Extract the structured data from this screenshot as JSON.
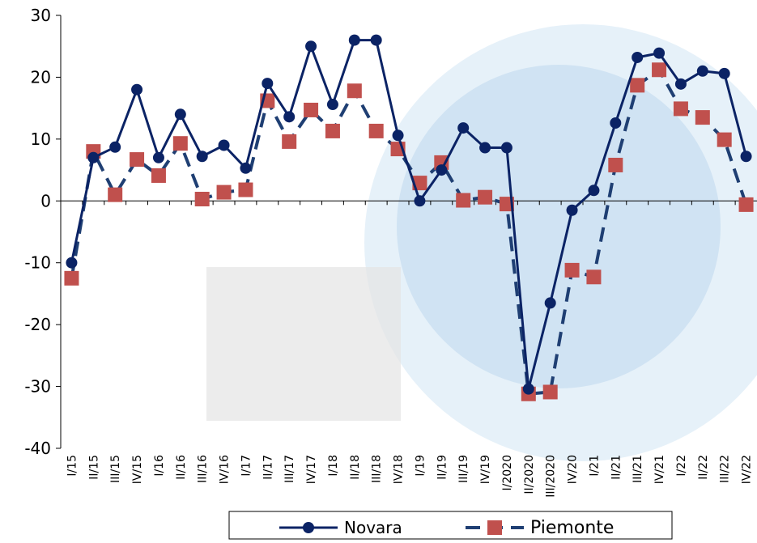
{
  "chart_data": {
    "type": "line",
    "categories": [
      "I/15",
      "II/15",
      "III/15",
      "IV/15",
      "I/16",
      "II/16",
      "III/16",
      "IV/16",
      "I/17",
      "II/17",
      "III/17",
      "IV/17",
      "I/18",
      "II/18",
      "III/18",
      "IV/18",
      "I/19",
      "II/19",
      "III/19",
      "IV/19",
      "I/2020",
      "II/2020",
      "III/2020",
      "IV/20",
      "I/21",
      "II/21",
      "III/21",
      "IV/21",
      "I/22",
      "II/22",
      "III/22",
      "IV/22"
    ],
    "series": [
      {
        "name": "Novara",
        "color": "#0b2365",
        "marker": "circle",
        "dashed": false,
        "values": [
          -10,
          7,
          8.7,
          18,
          7,
          14,
          7.2,
          9,
          5.3,
          19,
          13.6,
          25,
          15.6,
          26,
          26,
          10.6,
          0,
          5,
          11.8,
          8.6,
          8.6,
          -30.4,
          -16.5,
          -1.5,
          1.7,
          12.6,
          23.2,
          23.9,
          18.9,
          21,
          20.6,
          7.2
        ]
      },
      {
        "name": "Piemonte",
        "color": "#1f3f73",
        "marker_color": "#c0504d",
        "marker": "square",
        "dashed": true,
        "values": [
          -12.5,
          8,
          1,
          6.7,
          4.1,
          9.3,
          0.3,
          1.4,
          1.8,
          16.2,
          9.6,
          14.7,
          11.3,
          17.8,
          11.3,
          8.4,
          2.9,
          6.2,
          0.1,
          0.6,
          -0.5,
          -31.2,
          -30.9,
          -11.2,
          -12.3,
          5.8,
          18.7,
          21.2,
          14.9,
          13.5,
          9.9,
          -0.6
        ]
      }
    ],
    "ylim": [
      -40,
      30
    ],
    "yticks": [
      -40,
      -30,
      -20,
      -10,
      0,
      10,
      20,
      30
    ],
    "legend": "bottom"
  }
}
